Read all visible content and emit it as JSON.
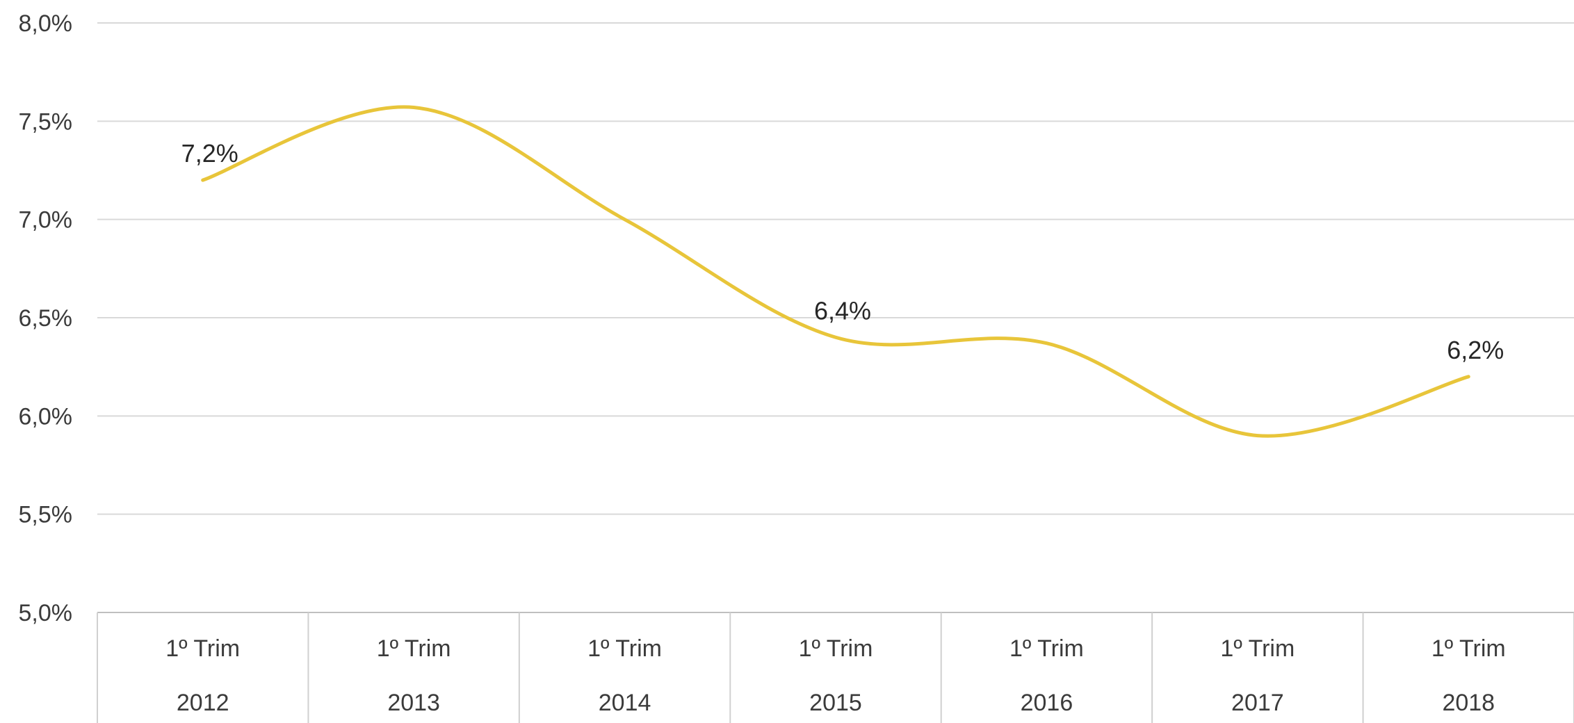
{
  "chart_data": {
    "type": "line",
    "title": "",
    "xlabel": "",
    "ylabel": "",
    "categories": [
      [
        "1º Trim",
        "2012"
      ],
      [
        "1º Trim",
        "2013"
      ],
      [
        "1º Trim",
        "2014"
      ],
      [
        "1º Trim",
        "2015"
      ],
      [
        "1º Trim",
        "2016"
      ],
      [
        "1º Trim",
        "2017"
      ],
      [
        "1º Trim",
        "2018"
      ]
    ],
    "series": [
      {
        "values": [
          7.2,
          7.57,
          7.0,
          6.4,
          6.37,
          5.9,
          6.2
        ],
        "color": "#E8C53A",
        "smooth": true
      }
    ],
    "data_labels": [
      {
        "index": 0,
        "text": "7,2%"
      },
      {
        "index": 3,
        "text": "6,4%"
      },
      {
        "index": 6,
        "text": "6,2%"
      }
    ],
    "ylim": [
      5.0,
      8.0
    ],
    "yticks": [
      {
        "value": 8.0,
        "label": "8,0%"
      },
      {
        "value": 7.5,
        "label": "7,5%"
      },
      {
        "value": 7.0,
        "label": "7,0%"
      },
      {
        "value": 6.5,
        "label": "6,5%"
      },
      {
        "value": 6.0,
        "label": "6,0%"
      },
      {
        "value": 5.5,
        "label": "5,5%"
      },
      {
        "value": 5.0,
        "label": "5,0%"
      }
    ],
    "grid": true,
    "legend": "none"
  }
}
